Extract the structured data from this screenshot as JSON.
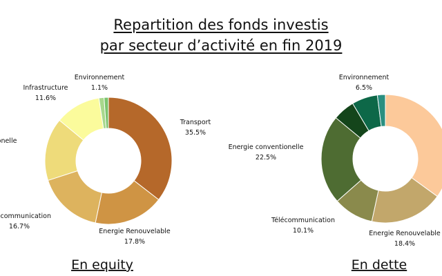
{
  "title_lines": [
    "Repartition des fonds investis",
    "par secteur d’activité en fin 2019"
  ],
  "chart_data": [
    {
      "type": "pie",
      "caption": "En equity",
      "slices": [
        {
          "label": "Transport",
          "value": 35.5,
          "display": "35.5%",
          "color": "#b5682a"
        },
        {
          "label": "Energie Renouvelable",
          "value": 17.8,
          "display": "17.8%",
          "color": "#cf9444"
        },
        {
          "label": "Télécommunication",
          "value": 16.7,
          "display": "16.7%",
          "color": "#ddb35e"
        },
        {
          "label": "Energie conventionelle",
          "value": 16.0,
          "display": "",
          "color": "#eedb7a"
        },
        {
          "label": "Infrastructure",
          "value": 11.6,
          "display": "11.6%",
          "color": "#fbfb9c"
        },
        {
          "label": "",
          "value": 1.3,
          "display": "",
          "color": "#a8d88c"
        },
        {
          "label": "Environnement",
          "value": 1.1,
          "display": "1.1%",
          "color": "#7cc36e"
        }
      ]
    },
    {
      "type": "pie",
      "caption": "En dette",
      "slices": [
        {
          "label": "",
          "value": 35.0,
          "display": "",
          "color": "#fcc99a"
        },
        {
          "label": "Energie Renouvelable",
          "value": 18.4,
          "display": "18.4%",
          "color": "#c2a76b"
        },
        {
          "label": "Télécommunication",
          "value": 10.1,
          "display": "10.1%",
          "color": "#8a8a4c"
        },
        {
          "label": "Energie conventionelle",
          "value": 22.5,
          "display": "22.5%",
          "color": "#4e6c32"
        },
        {
          "label": "",
          "value": 5.5,
          "display": "",
          "color": "#14451b"
        },
        {
          "label": "Environnement",
          "value": 6.5,
          "display": "6.5%",
          "color": "#0d6848"
        },
        {
          "label": "",
          "value": 2.0,
          "display": "",
          "color": "#2a8f80"
        }
      ]
    }
  ]
}
